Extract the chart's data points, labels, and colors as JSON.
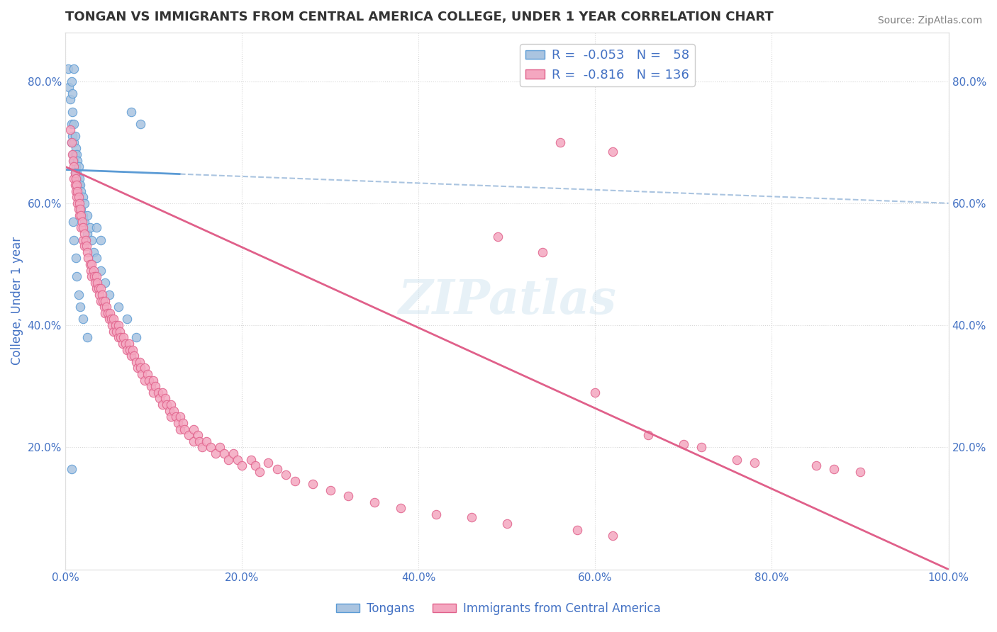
{
  "title": "TONGAN VS IMMIGRANTS FROM CENTRAL AMERICA COLLEGE, UNDER 1 YEAR CORRELATION CHART",
  "source": "Source: ZipAtlas.com",
  "ylabel": "College, Under 1 year",
  "xlim": [
    0.0,
    1.0
  ],
  "ylim": [
    0.0,
    0.88
  ],
  "x_tick_labels": [
    "0.0%",
    "20.0%",
    "40.0%",
    "60.0%",
    "80.0%",
    "100.0%"
  ],
  "x_tick_values": [
    0.0,
    0.2,
    0.4,
    0.6,
    0.8,
    1.0
  ],
  "y_tick_labels": [
    "20.0%",
    "40.0%",
    "60.0%",
    "80.0%"
  ],
  "y_tick_values": [
    0.2,
    0.4,
    0.6,
    0.8
  ],
  "tongan_color": "#aac4e0",
  "central_america_color": "#f4a7c0",
  "tongan_edge": "#5b9bd5",
  "central_america_edge": "#e0608a",
  "R_tongan": -0.053,
  "N_tongan": 58,
  "R_central": -0.816,
  "N_central": 136,
  "legend_label_1": "Tongans",
  "legend_label_2": "Immigrants from Central America",
  "watermark": "ZIPatlas",
  "tongan_line": {
    "x0": 0.0,
    "y0": 0.655,
    "x1": 1.0,
    "y1": 0.6
  },
  "ca_line": {
    "x0": 0.0,
    "y0": 0.66,
    "x1": 1.0,
    "y1": 0.0
  },
  "tongan_points": [
    [
      0.003,
      0.82
    ],
    [
      0.004,
      0.79
    ],
    [
      0.006,
      0.77
    ],
    [
      0.007,
      0.73
    ],
    [
      0.007,
      0.7
    ],
    [
      0.008,
      0.75
    ],
    [
      0.008,
      0.71
    ],
    [
      0.009,
      0.68
    ],
    [
      0.01,
      0.73
    ],
    [
      0.01,
      0.7
    ],
    [
      0.01,
      0.67
    ],
    [
      0.011,
      0.71
    ],
    [
      0.011,
      0.68
    ],
    [
      0.011,
      0.65
    ],
    [
      0.012,
      0.69
    ],
    [
      0.012,
      0.66
    ],
    [
      0.013,
      0.68
    ],
    [
      0.013,
      0.65
    ],
    [
      0.014,
      0.67
    ],
    [
      0.014,
      0.64
    ],
    [
      0.015,
      0.66
    ],
    [
      0.015,
      0.63
    ],
    [
      0.016,
      0.64
    ],
    [
      0.017,
      0.63
    ],
    [
      0.018,
      0.62
    ],
    [
      0.018,
      0.59
    ],
    [
      0.02,
      0.61
    ],
    [
      0.02,
      0.58
    ],
    [
      0.022,
      0.6
    ],
    [
      0.022,
      0.57
    ],
    [
      0.025,
      0.58
    ],
    [
      0.025,
      0.55
    ],
    [
      0.028,
      0.56
    ],
    [
      0.03,
      0.54
    ],
    [
      0.032,
      0.52
    ],
    [
      0.035,
      0.51
    ],
    [
      0.04,
      0.49
    ],
    [
      0.045,
      0.47
    ],
    [
      0.05,
      0.45
    ],
    [
      0.06,
      0.43
    ],
    [
      0.07,
      0.41
    ],
    [
      0.08,
      0.38
    ],
    [
      0.009,
      0.57
    ],
    [
      0.01,
      0.54
    ],
    [
      0.012,
      0.51
    ],
    [
      0.013,
      0.48
    ],
    [
      0.015,
      0.45
    ],
    [
      0.017,
      0.43
    ],
    [
      0.02,
      0.41
    ],
    [
      0.025,
      0.38
    ],
    [
      0.007,
      0.165
    ],
    [
      0.035,
      0.56
    ],
    [
      0.04,
      0.54
    ],
    [
      0.075,
      0.75
    ],
    [
      0.085,
      0.73
    ],
    [
      0.01,
      0.82
    ],
    [
      0.007,
      0.8
    ],
    [
      0.008,
      0.78
    ]
  ],
  "central_america_points": [
    [
      0.006,
      0.72
    ],
    [
      0.007,
      0.7
    ],
    [
      0.008,
      0.68
    ],
    [
      0.009,
      0.67
    ],
    [
      0.01,
      0.66
    ],
    [
      0.01,
      0.64
    ],
    [
      0.011,
      0.65
    ],
    [
      0.011,
      0.63
    ],
    [
      0.012,
      0.64
    ],
    [
      0.012,
      0.62
    ],
    [
      0.013,
      0.63
    ],
    [
      0.013,
      0.61
    ],
    [
      0.014,
      0.62
    ],
    [
      0.014,
      0.6
    ],
    [
      0.015,
      0.61
    ],
    [
      0.015,
      0.59
    ],
    [
      0.016,
      0.6
    ],
    [
      0.016,
      0.58
    ],
    [
      0.017,
      0.59
    ],
    [
      0.018,
      0.58
    ],
    [
      0.018,
      0.56
    ],
    [
      0.019,
      0.57
    ],
    [
      0.02,
      0.56
    ],
    [
      0.02,
      0.54
    ],
    [
      0.022,
      0.55
    ],
    [
      0.022,
      0.53
    ],
    [
      0.023,
      0.54
    ],
    [
      0.024,
      0.53
    ],
    [
      0.025,
      0.52
    ],
    [
      0.026,
      0.51
    ],
    [
      0.028,
      0.5
    ],
    [
      0.029,
      0.49
    ],
    [
      0.03,
      0.5
    ],
    [
      0.03,
      0.48
    ],
    [
      0.032,
      0.49
    ],
    [
      0.033,
      0.48
    ],
    [
      0.034,
      0.47
    ],
    [
      0.035,
      0.48
    ],
    [
      0.035,
      0.46
    ],
    [
      0.036,
      0.47
    ],
    [
      0.038,
      0.46
    ],
    [
      0.039,
      0.45
    ],
    [
      0.04,
      0.46
    ],
    [
      0.04,
      0.44
    ],
    [
      0.042,
      0.45
    ],
    [
      0.043,
      0.44
    ],
    [
      0.044,
      0.43
    ],
    [
      0.045,
      0.44
    ],
    [
      0.045,
      0.42
    ],
    [
      0.047,
      0.43
    ],
    [
      0.048,
      0.42
    ],
    [
      0.05,
      0.41
    ],
    [
      0.051,
      0.42
    ],
    [
      0.052,
      0.41
    ],
    [
      0.053,
      0.4
    ],
    [
      0.055,
      0.41
    ],
    [
      0.055,
      0.39
    ],
    [
      0.057,
      0.4
    ],
    [
      0.058,
      0.39
    ],
    [
      0.06,
      0.38
    ],
    [
      0.06,
      0.4
    ],
    [
      0.062,
      0.39
    ],
    [
      0.063,
      0.38
    ],
    [
      0.065,
      0.37
    ],
    [
      0.066,
      0.38
    ],
    [
      0.068,
      0.37
    ],
    [
      0.07,
      0.36
    ],
    [
      0.072,
      0.37
    ],
    [
      0.073,
      0.36
    ],
    [
      0.075,
      0.35
    ],
    [
      0.076,
      0.36
    ],
    [
      0.078,
      0.35
    ],
    [
      0.08,
      0.34
    ],
    [
      0.082,
      0.33
    ],
    [
      0.084,
      0.34
    ],
    [
      0.085,
      0.33
    ],
    [
      0.087,
      0.32
    ],
    [
      0.09,
      0.33
    ],
    [
      0.09,
      0.31
    ],
    [
      0.093,
      0.32
    ],
    [
      0.095,
      0.31
    ],
    [
      0.097,
      0.3
    ],
    [
      0.1,
      0.31
    ],
    [
      0.1,
      0.29
    ],
    [
      0.102,
      0.3
    ],
    [
      0.105,
      0.29
    ],
    [
      0.107,
      0.28
    ],
    [
      0.11,
      0.29
    ],
    [
      0.11,
      0.27
    ],
    [
      0.113,
      0.28
    ],
    [
      0.115,
      0.27
    ],
    [
      0.118,
      0.26
    ],
    [
      0.12,
      0.27
    ],
    [
      0.12,
      0.25
    ],
    [
      0.123,
      0.26
    ],
    [
      0.125,
      0.25
    ],
    [
      0.128,
      0.24
    ],
    [
      0.13,
      0.25
    ],
    [
      0.13,
      0.23
    ],
    [
      0.133,
      0.24
    ],
    [
      0.135,
      0.23
    ],
    [
      0.14,
      0.22
    ],
    [
      0.145,
      0.23
    ],
    [
      0.145,
      0.21
    ],
    [
      0.15,
      0.22
    ],
    [
      0.152,
      0.21
    ],
    [
      0.155,
      0.2
    ],
    [
      0.16,
      0.21
    ],
    [
      0.165,
      0.2
    ],
    [
      0.17,
      0.19
    ],
    [
      0.175,
      0.2
    ],
    [
      0.18,
      0.19
    ],
    [
      0.185,
      0.18
    ],
    [
      0.19,
      0.19
    ],
    [
      0.195,
      0.18
    ],
    [
      0.2,
      0.17
    ],
    [
      0.21,
      0.18
    ],
    [
      0.215,
      0.17
    ],
    [
      0.22,
      0.16
    ],
    [
      0.23,
      0.175
    ],
    [
      0.24,
      0.165
    ],
    [
      0.25,
      0.155
    ],
    [
      0.26,
      0.145
    ],
    [
      0.28,
      0.14
    ],
    [
      0.3,
      0.13
    ],
    [
      0.32,
      0.12
    ],
    [
      0.35,
      0.11
    ],
    [
      0.38,
      0.1
    ],
    [
      0.42,
      0.09
    ],
    [
      0.46,
      0.085
    ],
    [
      0.5,
      0.075
    ],
    [
      0.58,
      0.065
    ],
    [
      0.62,
      0.055
    ],
    [
      0.49,
      0.545
    ],
    [
      0.54,
      0.52
    ],
    [
      0.56,
      0.7
    ],
    [
      0.62,
      0.685
    ],
    [
      0.6,
      0.29
    ],
    [
      0.66,
      0.22
    ],
    [
      0.7,
      0.205
    ],
    [
      0.72,
      0.2
    ],
    [
      0.76,
      0.18
    ],
    [
      0.78,
      0.175
    ],
    [
      0.85,
      0.17
    ],
    [
      0.87,
      0.165
    ],
    [
      0.9,
      0.16
    ]
  ],
  "bg_color": "#ffffff",
  "grid_color": "#cccccc",
  "title_color": "#333333",
  "tick_color": "#4472c4",
  "axis_label_color": "#4472c4"
}
